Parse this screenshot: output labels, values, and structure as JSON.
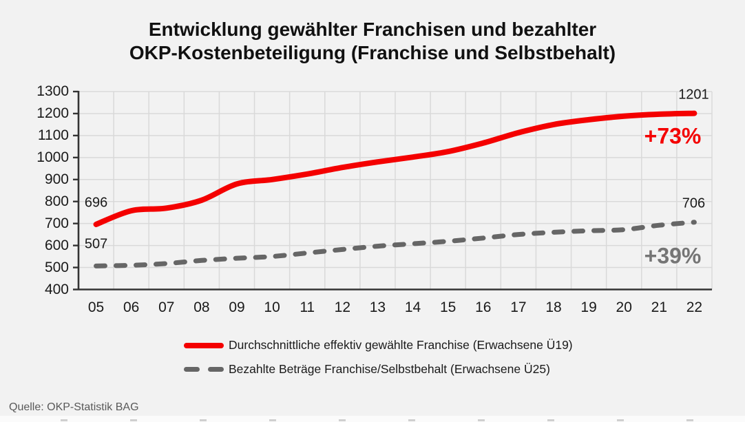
{
  "chart_data": {
    "type": "line",
    "title_line1": "Entwicklung gewählter Franchisen und bezahlter",
    "title_line2": "OKP-Kostenbeteiligung (Franchise und Selbstbehalt)",
    "x_categories": [
      "05",
      "06",
      "07",
      "08",
      "09",
      "10",
      "11",
      "12",
      "13",
      "14",
      "15",
      "16",
      "17",
      "18",
      "19",
      "20",
      "21",
      "22"
    ],
    "y_ticks": [
      1300,
      1200,
      1100,
      1000,
      900,
      800,
      700,
      600,
      500,
      400
    ],
    "ylim": [
      400,
      1300
    ],
    "grid": true,
    "legend_position": "bottom",
    "series": [
      {
        "name": "Durchschnittliche effektiv gewählte Franchise (Erwachsene Ü19)",
        "style": "solid",
        "color": "#f40000",
        "pct_color": "#f40000",
        "values": [
          696,
          758,
          770,
          806,
          880,
          900,
          925,
          955,
          980,
          1002,
          1027,
          1066,
          1113,
          1150,
          1172,
          1188,
          1197,
          1201
        ],
        "start_label": "696",
        "end_label": "1201",
        "pct_label": "+73%"
      },
      {
        "name": "Bezahlte Beträge Franchise/Selbstbehalt (Erwachsene Ü25)",
        "style": "dashed",
        "color": "#666666",
        "pct_color": "#757575",
        "values": [
          507,
          510,
          518,
          532,
          542,
          550,
          566,
          582,
          597,
          608,
          619,
          634,
          650,
          660,
          667,
          672,
          692,
          706
        ],
        "start_label": "507",
        "end_label": "706",
        "pct_label": "+39%"
      }
    ],
    "source": "Quelle: OKP-Statistik BAG",
    "colors": {
      "background": "#f2f2f2",
      "grid": "#d9d9d9",
      "axis": "#333333",
      "tick_text": "#1a1a1a"
    }
  }
}
